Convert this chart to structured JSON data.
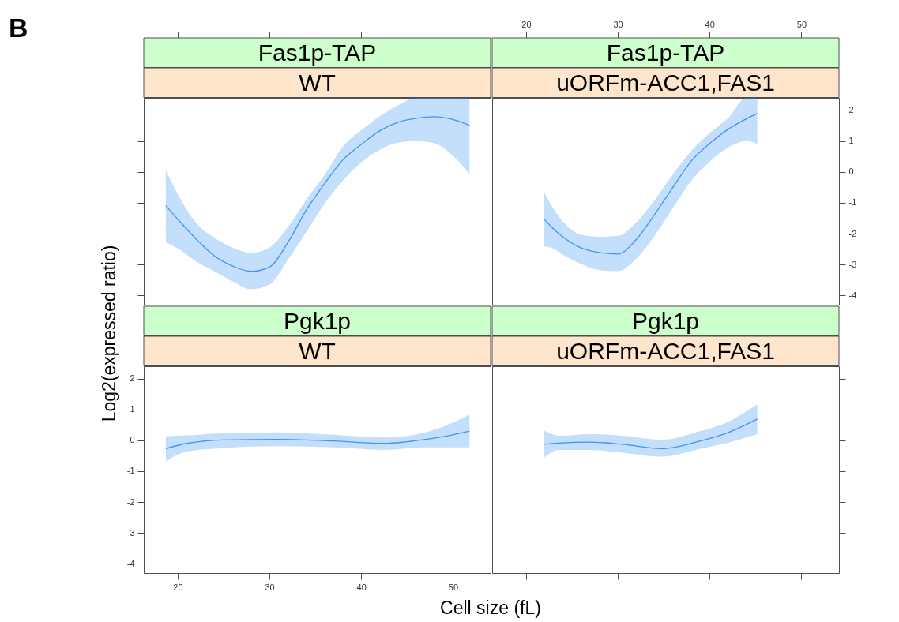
{
  "chart_data": [
    {
      "type": "line",
      "title": "Fas1p-TAP",
      "subtitle": "WT",
      "annotations": [
        "B"
      ],
      "xlim": [
        16.3,
        54.1
      ],
      "ylim": [
        -4.3,
        2.4
      ],
      "xticks": [
        20,
        30,
        40,
        50
      ],
      "yticks": [
        -4,
        -3,
        -2,
        -1,
        0,
        1,
        2
      ],
      "tick_labels": false,
      "series": [
        {
          "color": "#3d94f6",
          "x": [
            18.7,
            20,
            22,
            24,
            26,
            28,
            30,
            32,
            34,
            36,
            38,
            40,
            42,
            44,
            46,
            48,
            50,
            51.8
          ],
          "values": [
            -1.09,
            -1.53,
            -2.17,
            -2.72,
            -3.05,
            -3.22,
            -3.08,
            -2.29,
            -1.24,
            -0.38,
            0.39,
            0.89,
            1.33,
            1.61,
            1.74,
            1.79,
            1.7,
            1.51
          ],
          "lower": [
            -2.28,
            -2.48,
            -2.9,
            -3.22,
            -3.55,
            -3.8,
            -3.65,
            -2.85,
            -1.95,
            -1.03,
            -0.28,
            0.3,
            0.72,
            0.95,
            1.0,
            0.93,
            0.52,
            -0.07
          ],
          "upper": [
            0.06,
            -0.72,
            -1.65,
            -2.13,
            -2.45,
            -2.62,
            -2.45,
            -1.79,
            -0.9,
            -0.1,
            0.82,
            1.35,
            1.8,
            2.16,
            2.4,
            2.4,
            2.4,
            2.4
          ]
        }
      ]
    },
    {
      "type": "line",
      "title": "Fas1p-TAP",
      "subtitle": "uORFm-ACC1,FAS1",
      "xlim": [
        16.3,
        54.1
      ],
      "x2lim": [
        16.3,
        54.1
      ],
      "x2ticks": [
        20,
        30,
        40,
        50
      ],
      "y2lim": [
        -4.3,
        2.4
      ],
      "y2ticks": [
        -4,
        -3,
        -2,
        -1,
        0,
        1,
        2
      ],
      "series": [
        {
          "color": "#3d94f6",
          "axis": "y2",
          "x": [
            21.9,
            23,
            24,
            26,
            28,
            30,
            32,
            34,
            36,
            38,
            40,
            42,
            44,
            45.2
          ],
          "values": [
            -1.51,
            -1.85,
            -2.1,
            -2.46,
            -2.61,
            -2.66,
            -2.19,
            -1.38,
            -0.5,
            0.35,
            0.92,
            1.38,
            1.72,
            1.89
          ],
          "lower": [
            -2.41,
            -2.49,
            -2.68,
            -2.98,
            -3.18,
            -3.21,
            -2.81,
            -2.07,
            -1.17,
            -0.29,
            0.33,
            0.79,
            1.0,
            0.91
          ],
          "upper": [
            -0.62,
            -1.2,
            -1.6,
            -2.03,
            -2.1,
            -2.07,
            -1.64,
            -0.92,
            -0.07,
            0.68,
            1.26,
            1.74,
            2.4,
            2.4
          ]
        }
      ]
    },
    {
      "type": "line",
      "title": "Pgk1p",
      "subtitle": "WT",
      "xlabel": "Cell size (fL)",
      "ylabel": "Log2(expressed ratio)",
      "xlim": [
        16.3,
        54.1
      ],
      "ylim": [
        -4.3,
        2.4
      ],
      "xticks": [
        20,
        30,
        40,
        50
      ],
      "yticks": [
        -4,
        -3,
        -2,
        -1,
        0,
        1,
        2
      ],
      "series": [
        {
          "color": "#3d94f6",
          "x": [
            18.7,
            21,
            25,
            31,
            37,
            42.5,
            47,
            50,
            51.8
          ],
          "values": [
            -0.27,
            -0.1,
            0.01,
            0.03,
            -0.02,
            -0.1,
            0.03,
            0.18,
            0.3
          ],
          "lower": [
            -0.68,
            -0.36,
            -0.25,
            -0.19,
            -0.23,
            -0.31,
            -0.23,
            -0.23,
            -0.23
          ],
          "upper": [
            0.13,
            0.16,
            0.23,
            0.26,
            0.18,
            0.09,
            0.26,
            0.58,
            0.83
          ]
        }
      ]
    },
    {
      "type": "line",
      "title": "Pgk1p",
      "subtitle": "uORFm-ACC1,FAS1",
      "xlim": [
        16.3,
        54.1
      ],
      "ylim": [
        -4.3,
        2.4
      ],
      "xticks": [
        20,
        30,
        40,
        50
      ],
      "yticks": [
        -4,
        -3,
        -2,
        -1,
        0,
        1,
        2
      ],
      "tick_labels": false,
      "series": [
        {
          "color": "#3d94f6",
          "x": [
            21.9,
            23.6,
            27,
            30.5,
            34.8,
            39,
            42,
            45.2
          ],
          "values": [
            -0.13,
            -0.09,
            -0.06,
            -0.13,
            -0.27,
            -0.02,
            0.25,
            0.69
          ],
          "lower": [
            -0.57,
            -0.31,
            -0.31,
            -0.4,
            -0.53,
            -0.27,
            -0.08,
            0.2
          ],
          "upper": [
            0.32,
            0.15,
            0.2,
            0.15,
            0.02,
            0.3,
            0.6,
            1.17
          ]
        }
      ]
    }
  ]
}
